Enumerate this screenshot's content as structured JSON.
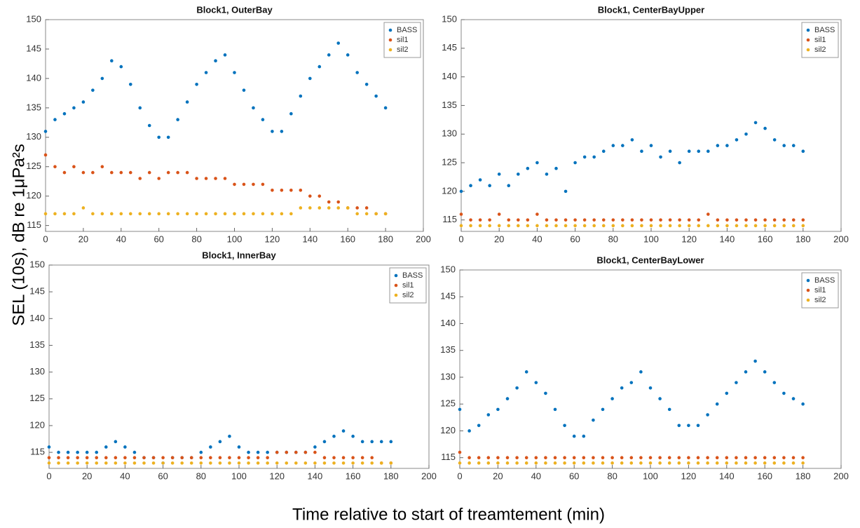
{
  "shared": {
    "ylabel": "SEL (10s), dB re 1μPa²s",
    "xlabel": "Time relative to start of treamtement (min)"
  },
  "chart_data": [
    {
      "type": "scatter",
      "title": "Block1, OuterBay",
      "x": [
        0,
        5,
        10,
        15,
        20,
        25,
        30,
        35,
        40,
        45,
        50,
        55,
        60,
        65,
        70,
        75,
        80,
        85,
        90,
        95,
        100,
        105,
        110,
        115,
        120,
        125,
        130,
        135,
        140,
        145,
        150,
        155,
        160,
        165,
        170,
        175,
        180
      ],
      "series": [
        {
          "name": "BASS",
          "color": "#0072BD",
          "values": [
            131,
            133,
            134,
            135,
            136,
            138,
            140,
            143,
            142,
            139,
            135,
            132,
            130,
            130,
            133,
            136,
            139,
            141,
            143,
            144,
            141,
            138,
            135,
            133,
            131,
            131,
            134,
            137,
            140,
            142,
            144,
            146,
            144,
            141,
            139,
            137,
            135
          ]
        },
        {
          "name": "sil1",
          "color": "#D95319",
          "values": [
            127,
            125,
            124,
            125,
            124,
            124,
            125,
            124,
            124,
            124,
            123,
            124,
            123,
            124,
            124,
            124,
            123,
            123,
            123,
            123,
            122,
            122,
            122,
            122,
            121,
            121,
            121,
            121,
            120,
            120,
            119,
            119,
            118,
            118,
            118,
            117,
            117
          ]
        },
        {
          "name": "sil2",
          "color": "#EDB120",
          "values": [
            117,
            117,
            117,
            117,
            118,
            117,
            117,
            117,
            117,
            117,
            117,
            117,
            117,
            117,
            117,
            117,
            117,
            117,
            117,
            117,
            117,
            117,
            117,
            117,
            117,
            117,
            117,
            118,
            118,
            118,
            118,
            118,
            118,
            117,
            117,
            117,
            117
          ]
        }
      ],
      "xlim": [
        0,
        200
      ],
      "ylim": [
        114,
        150
      ],
      "xticks": [
        0,
        20,
        40,
        60,
        80,
        100,
        120,
        140,
        160,
        180,
        200
      ],
      "yticks": [
        115,
        120,
        125,
        130,
        135,
        140,
        145,
        150
      ],
      "legend": "upper right"
    },
    {
      "type": "scatter",
      "title": "Block1, CenterBayUpper",
      "x": [
        0,
        5,
        10,
        15,
        20,
        25,
        30,
        35,
        40,
        45,
        50,
        55,
        60,
        65,
        70,
        75,
        80,
        85,
        90,
        95,
        100,
        105,
        110,
        115,
        120,
        125,
        130,
        135,
        140,
        145,
        150,
        155,
        160,
        165,
        170,
        175,
        180
      ],
      "series": [
        {
          "name": "BASS",
          "color": "#0072BD",
          "values": [
            120,
            121,
            122,
            121,
            123,
            121,
            123,
            124,
            125,
            123,
            124,
            120,
            125,
            126,
            126,
            127,
            128,
            128,
            129,
            127,
            128,
            126,
            127,
            125,
            127,
            127,
            127,
            128,
            128,
            129,
            130,
            132,
            131,
            129,
            128,
            128,
            127
          ]
        },
        {
          "name": "sil1",
          "color": "#D95319",
          "values": [
            116,
            115,
            115,
            115,
            116,
            115,
            115,
            115,
            116,
            115,
            115,
            115,
            115,
            115,
            115,
            115,
            115,
            115,
            115,
            115,
            115,
            115,
            115,
            115,
            115,
            115,
            116,
            115,
            115,
            115,
            115,
            115,
            115,
            115,
            115,
            115,
            115
          ]
        },
        {
          "name": "sil2",
          "color": "#EDB120",
          "values": [
            114,
            114,
            114,
            114,
            114,
            114,
            114,
            114,
            114,
            114,
            114,
            114,
            114,
            114,
            114,
            114,
            114,
            114,
            114,
            114,
            114,
            114,
            114,
            114,
            114,
            114,
            114,
            114,
            114,
            114,
            114,
            114,
            114,
            114,
            114,
            114,
            114
          ]
        }
      ],
      "xlim": [
        0,
        200
      ],
      "ylim": [
        113,
        150
      ],
      "xticks": [
        0,
        20,
        40,
        60,
        80,
        100,
        120,
        140,
        160,
        180,
        200
      ],
      "yticks": [
        115,
        120,
        125,
        130,
        135,
        140,
        145,
        150
      ],
      "legend": "upper right"
    },
    {
      "type": "scatter",
      "title": "Block1, InnerBay",
      "x": [
        0,
        5,
        10,
        15,
        20,
        25,
        30,
        35,
        40,
        45,
        50,
        55,
        60,
        65,
        70,
        75,
        80,
        85,
        90,
        95,
        100,
        105,
        110,
        115,
        120,
        125,
        130,
        135,
        140,
        145,
        150,
        155,
        160,
        165,
        170,
        175,
        180
      ],
      "series": [
        {
          "name": "BASS",
          "color": "#0072BD",
          "values": [
            116,
            115,
            115,
            115,
            115,
            115,
            116,
            117,
            116,
            115,
            114,
            114,
            113,
            114,
            114,
            114,
            115,
            116,
            117,
            118,
            116,
            115,
            115,
            115,
            115,
            115,
            115,
            115,
            116,
            117,
            118,
            119,
            118,
            117,
            117,
            117,
            117
          ]
        },
        {
          "name": "sil1",
          "color": "#D95319",
          "values": [
            114,
            114,
            114,
            114,
            114,
            114,
            114,
            114,
            114,
            114,
            114,
            114,
            114,
            114,
            114,
            114,
            114,
            114,
            114,
            114,
            114,
            114,
            114,
            114,
            115,
            115,
            115,
            115,
            115,
            114,
            114,
            114,
            114,
            114,
            114,
            113,
            113
          ]
        },
        {
          "name": "sil2",
          "color": "#EDB120",
          "values": [
            113,
            113,
            113,
            113,
            113,
            113,
            113,
            113,
            113,
            113,
            113,
            113,
            113,
            113,
            113,
            113,
            113,
            113,
            113,
            113,
            113,
            113,
            113,
            113,
            113,
            113,
            113,
            113,
            113,
            113,
            113,
            113,
            113,
            113,
            113,
            113,
            113
          ]
        }
      ],
      "xlim": [
        0,
        200
      ],
      "ylim": [
        112,
        150
      ],
      "xticks": [
        0,
        20,
        40,
        60,
        80,
        100,
        120,
        140,
        160,
        180,
        200
      ],
      "yticks": [
        115,
        120,
        125,
        130,
        135,
        140,
        145,
        150
      ],
      "legend": "upper right"
    },
    {
      "type": "scatter",
      "title": "Block1, CenterBayLower",
      "x": [
        0,
        5,
        10,
        15,
        20,
        25,
        30,
        35,
        40,
        45,
        50,
        55,
        60,
        65,
        70,
        75,
        80,
        85,
        90,
        95,
        100,
        105,
        110,
        115,
        120,
        125,
        130,
        135,
        140,
        145,
        150,
        155,
        160,
        165,
        170,
        175,
        180
      ],
      "series": [
        {
          "name": "BASS",
          "color": "#0072BD",
          "values": [
            124,
            120,
            121,
            123,
            124,
            126,
            128,
            131,
            129,
            127,
            124,
            121,
            119,
            119,
            122,
            124,
            126,
            128,
            129,
            131,
            128,
            126,
            124,
            121,
            121,
            121,
            123,
            125,
            127,
            129,
            131,
            133,
            131,
            129,
            127,
            126,
            125
          ]
        },
        {
          "name": "sil1",
          "color": "#D95319",
          "values": [
            116,
            115,
            115,
            115,
            115,
            115,
            115,
            115,
            115,
            115,
            115,
            115,
            115,
            115,
            115,
            115,
            115,
            115,
            115,
            115,
            115,
            115,
            115,
            115,
            115,
            115,
            115,
            115,
            115,
            115,
            115,
            115,
            115,
            115,
            115,
            115,
            115
          ]
        },
        {
          "name": "sil2",
          "color": "#EDB120",
          "values": [
            114,
            114,
            114,
            114,
            114,
            114,
            114,
            114,
            114,
            114,
            114,
            114,
            114,
            114,
            114,
            114,
            114,
            114,
            114,
            114,
            114,
            114,
            114,
            114,
            114,
            114,
            114,
            114,
            114,
            114,
            114,
            114,
            114,
            114,
            114,
            114,
            114
          ]
        }
      ],
      "xlim": [
        0,
        200
      ],
      "ylim": [
        113,
        150
      ],
      "xticks": [
        0,
        20,
        40,
        60,
        80,
        100,
        120,
        140,
        160,
        180,
        200
      ],
      "yticks": [
        115,
        120,
        125,
        130,
        135,
        140,
        145,
        150
      ],
      "legend": "upper right"
    }
  ]
}
